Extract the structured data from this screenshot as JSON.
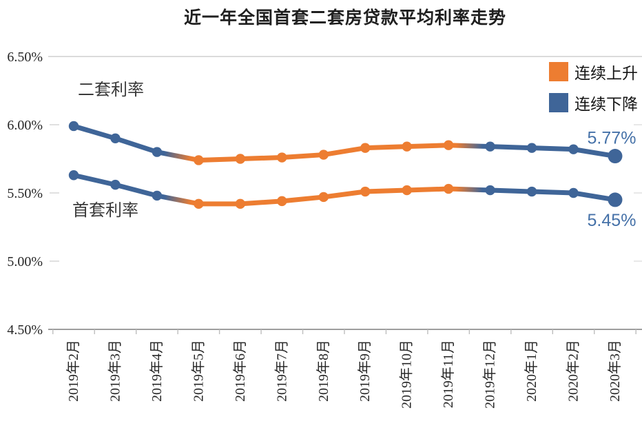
{
  "chart_data": {
    "type": "line",
    "title": "近一年全国首套二套房贷款平均利率走势",
    "x_categories": [
      "2019年2月",
      "2019年3月",
      "2019年4月",
      "2019年5月",
      "2019年6月",
      "2019年7月",
      "2019年8月",
      "2019年9月",
      "2019年10月",
      "2019年11月",
      "2019年12月",
      "2020年1月",
      "2020年2月",
      "2020年3月"
    ],
    "y_axis": {
      "ticks": [
        "6.50%",
        "6.00%",
        "5.50%",
        "5.00%",
        "4.50%"
      ],
      "tick_values": [
        6.5,
        6.0,
        5.5,
        5.0,
        4.5
      ],
      "min": 4.5,
      "max": 6.5,
      "unit": "%"
    },
    "series": [
      {
        "name": "二套利率",
        "values": [
          5.99,
          5.9,
          5.8,
          5.74,
          5.75,
          5.76,
          5.78,
          5.83,
          5.84,
          5.85,
          5.84,
          5.83,
          5.82,
          5.77
        ],
        "end_label": "5.77%"
      },
      {
        "name": "首套利率",
        "values": [
          5.63,
          5.56,
          5.48,
          5.42,
          5.42,
          5.44,
          5.47,
          5.51,
          5.52,
          5.53,
          5.52,
          5.51,
          5.5,
          5.45
        ],
        "end_label": "5.45%"
      }
    ],
    "point_phases": [
      "down",
      "down",
      "down",
      "up",
      "up",
      "up",
      "up",
      "up",
      "up",
      "up",
      "down",
      "down",
      "down",
      "down"
    ],
    "phase_colors": {
      "up": "#ED7D31",
      "down": "#3F6598"
    },
    "annotation_color": "#4571A8",
    "legend": [
      {
        "label": "连续上升",
        "phase": "up"
      },
      {
        "label": "连续下降",
        "phase": "down"
      }
    ],
    "legend_position": "top-right",
    "grid": "horizontal-faint"
  }
}
